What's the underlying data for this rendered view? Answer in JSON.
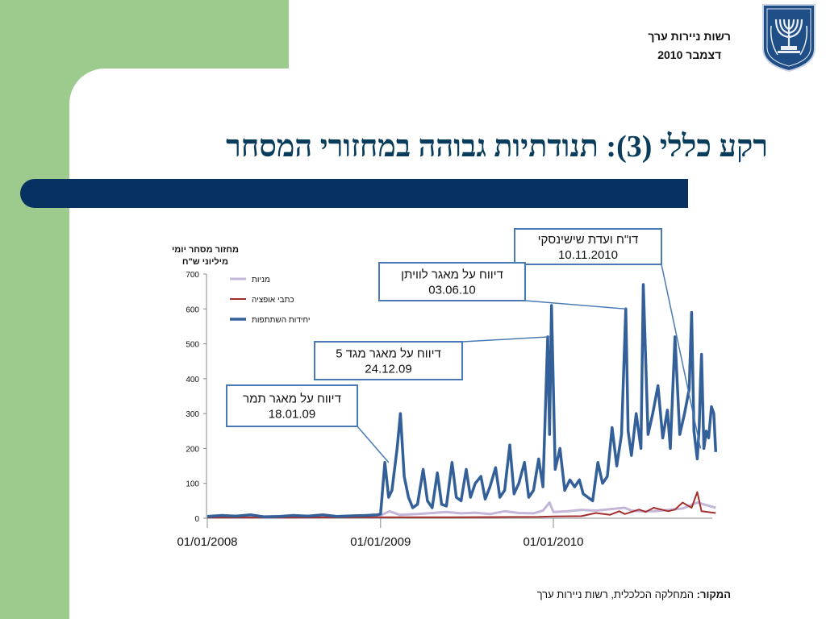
{
  "header": {
    "org_name": "רשות ניירות ערך",
    "date": "דצמבר 2010",
    "emblem_icon": "state-emblem-menorah-icon"
  },
  "slide": {
    "title": "רקע כללי (3): תנודתיות גבוהה במחזורי המסחר"
  },
  "source": {
    "label": "המקור:",
    "text": "המחלקה הכלכלית, רשות ניירות ערך"
  },
  "chart_data": {
    "type": "line",
    "ylabel_line1": "מחזור מסחר יומי",
    "ylabel_line2": "מיליוני ש\"ח",
    "ylim": [
      0,
      700
    ],
    "yticks": [
      "0",
      "100",
      "200",
      "300",
      "400",
      "500",
      "600",
      "700"
    ],
    "xticks": [
      "01/01/2008",
      "01/01/2009",
      "01/01/2010"
    ],
    "legend_position": "top-left",
    "series": [
      {
        "name": "מניות",
        "color": "#c3b6d8",
        "x": [
          "2008-01-01",
          "2008-07-01",
          "2008-12-20",
          "2009-01-01",
          "2009-01-20",
          "2009-02-10",
          "2009-03-20",
          "2009-04-20",
          "2009-05-20",
          "2009-06-20",
          "2009-07-20",
          "2009-08-20",
          "2009-09-20",
          "2009-10-20",
          "2009-11-20",
          "2009-12-10",
          "2009-12-24",
          "2010-01-01",
          "2010-02-01",
          "2010-03-01",
          "2010-04-01",
          "2010-05-01",
          "2010-06-01",
          "2010-06-15",
          "2010-07-01",
          "2010-08-01",
          "2010-09-01",
          "2010-10-01",
          "2010-11-01",
          "2010-12-10"
        ],
        "values": [
          5,
          5,
          6,
          8,
          20,
          10,
          12,
          15,
          18,
          14,
          16,
          12,
          20,
          15,
          14,
          22,
          45,
          18,
          20,
          24,
          22,
          26,
          30,
          22,
          20,
          20,
          24,
          28,
          45,
          30
        ]
      },
      {
        "name": "כתבי אופציה",
        "color": "#a3302e",
        "x": [
          "2008-01-01",
          "2008-07-01",
          "2009-01-01",
          "2009-06-01",
          "2009-12-01",
          "2010-01-01",
          "2010-03-01",
          "2010-04-01",
          "2010-05-01",
          "2010-05-20",
          "2010-06-01",
          "2010-07-01",
          "2010-07-15",
          "2010-08-01",
          "2010-09-01",
          "2010-09-15",
          "2010-10-01",
          "2010-10-20",
          "2010-11-01",
          "2010-11-10",
          "2010-12-10"
        ],
        "values": [
          2,
          2,
          3,
          3,
          4,
          5,
          6,
          15,
          10,
          20,
          12,
          25,
          18,
          30,
          20,
          25,
          45,
          30,
          75,
          20,
          15
        ]
      },
      {
        "name": "יחידות השתתפות",
        "color": "#34609a",
        "x": [
          "2008-01-01",
          "2008-02-01",
          "2008-03-01",
          "2008-04-01",
          "2008-05-01",
          "2008-06-01",
          "2008-07-01",
          "2008-08-01",
          "2008-09-01",
          "2008-10-01",
          "2008-11-01",
          "2008-12-01",
          "2008-12-25",
          "2009-01-01",
          "2009-01-10",
          "2009-01-18",
          "2009-01-25",
          "2009-02-05",
          "2009-02-12",
          "2009-02-20",
          "2009-03-01",
          "2009-03-10",
          "2009-03-20",
          "2009-04-01",
          "2009-04-10",
          "2009-04-20",
          "2009-05-01",
          "2009-05-10",
          "2009-05-20",
          "2009-06-01",
          "2009-06-10",
          "2009-06-20",
          "2009-07-01",
          "2009-07-10",
          "2009-07-20",
          "2009-08-01",
          "2009-08-10",
          "2009-08-20",
          "2009-09-01",
          "2009-09-10",
          "2009-09-20",
          "2009-10-01",
          "2009-10-10",
          "2009-10-20",
          "2009-11-01",
          "2009-11-10",
          "2009-11-20",
          "2009-12-01",
          "2009-12-10",
          "2009-12-20",
          "2009-12-24",
          "2009-12-28",
          "2010-01-05",
          "2010-01-15",
          "2010-01-25",
          "2010-02-05",
          "2010-02-15",
          "2010-02-25",
          "2010-03-05",
          "2010-03-15",
          "2010-03-25",
          "2010-04-05",
          "2010-04-15",
          "2010-04-25",
          "2010-05-05",
          "2010-05-15",
          "2010-05-25",
          "2010-06-03",
          "2010-06-08",
          "2010-06-15",
          "2010-06-25",
          "2010-07-05",
          "2010-07-10",
          "2010-07-20",
          "2010-07-30",
          "2010-08-10",
          "2010-08-20",
          "2010-08-30",
          "2010-09-05",
          "2010-09-15",
          "2010-09-25",
          "2010-10-05",
          "2010-10-15",
          "2010-10-20",
          "2010-10-25",
          "2010-11-01",
          "2010-11-05",
          "2010-11-08",
          "2010-11-10",
          "2010-11-15",
          "2010-11-20",
          "2010-11-25",
          "2010-12-01",
          "2010-12-06",
          "2010-12-10"
        ],
        "values": [
          5,
          8,
          6,
          10,
          4,
          5,
          8,
          6,
          10,
          5,
          7,
          8,
          10,
          12,
          160,
          60,
          80,
          200,
          300,
          120,
          60,
          30,
          40,
          140,
          50,
          30,
          130,
          40,
          35,
          160,
          60,
          50,
          140,
          60,
          100,
          120,
          55,
          90,
          145,
          60,
          80,
          210,
          70,
          100,
          160,
          60,
          80,
          170,
          90,
          520,
          240,
          610,
          140,
          200,
          80,
          110,
          90,
          110,
          70,
          60,
          50,
          160,
          100,
          120,
          260,
          150,
          240,
          600,
          250,
          180,
          300,
          200,
          670,
          240,
          300,
          380,
          230,
          310,
          200,
          520,
          240,
          300,
          370,
          590,
          250,
          170,
          260,
          400,
          470,
          200,
          250,
          230,
          320,
          300,
          190
        ]
      }
    ],
    "annotations": [
      {
        "line1": "דו\"ח ועדת שישינסקי",
        "line2": "10.11.2010",
        "target_x": "2010-11-08",
        "target_y": 200
      },
      {
        "line1": "דיווח על מאגר לוויתן",
        "line2": "03.06.10",
        "target_x": "2010-06-03",
        "target_y": 600
      },
      {
        "line1": "דיווח על מאגר מגד 5",
        "line2": "24.12.09",
        "target_x": "2009-12-24",
        "target_y": 520
      },
      {
        "line1": "דיווח על מאגר תמר",
        "line2": "18.01.09",
        "target_x": "2009-01-18",
        "target_y": 160
      }
    ]
  }
}
